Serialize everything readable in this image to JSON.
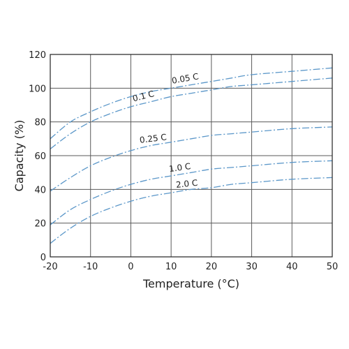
{
  "chart_data": {
    "type": "line",
    "xlabel": "Temperature (°C)",
    "ylabel": "Capacity (%)",
    "xlim": [
      -20,
      50
    ],
    "ylim": [
      0,
      120
    ],
    "xticks": [
      -20,
      -10,
      0,
      10,
      20,
      30,
      40,
      50
    ],
    "yticks": [
      0,
      20,
      40,
      60,
      80,
      100,
      120
    ],
    "grid": true,
    "line_color": "#5b97c9",
    "series": [
      {
        "name": "0.05 C",
        "x": [
          -20,
          -15,
          -10,
          -5,
          0,
          5,
          10,
          15,
          20,
          25,
          30,
          40,
          50
        ],
        "values": [
          70,
          80,
          86,
          91,
          95,
          98,
          100,
          102,
          104,
          106,
          108,
          110,
          112
        ]
      },
      {
        "name": "0.1 C",
        "x": [
          -20,
          -15,
          -10,
          -5,
          0,
          5,
          10,
          15,
          20,
          25,
          30,
          40,
          50
        ],
        "values": [
          64,
          73,
          80,
          85,
          89,
          92,
          95,
          97,
          99,
          101,
          102,
          104,
          106
        ]
      },
      {
        "name": "0.25 C",
        "x": [
          -20,
          -15,
          -10,
          -5,
          0,
          5,
          10,
          15,
          20,
          25,
          30,
          40,
          50
        ],
        "values": [
          39,
          47,
          54,
          59,
          63,
          66,
          68,
          70,
          72,
          73,
          74,
          76,
          77
        ]
      },
      {
        "name": "1.0 C",
        "x": [
          -20,
          -15,
          -10,
          -5,
          0,
          5,
          10,
          15,
          20,
          25,
          30,
          40,
          50
        ],
        "values": [
          19,
          28,
          34,
          39,
          43,
          46,
          48,
          50,
          52,
          53,
          54,
          56,
          57
        ]
      },
      {
        "name": "2.0 C",
        "x": [
          -20,
          -15,
          -10,
          -5,
          0,
          5,
          10,
          15,
          20,
          25,
          30,
          40,
          50
        ],
        "values": [
          8,
          17,
          24,
          29,
          33,
          36,
          38,
          40,
          41,
          43,
          44,
          46,
          47
        ]
      }
    ]
  }
}
